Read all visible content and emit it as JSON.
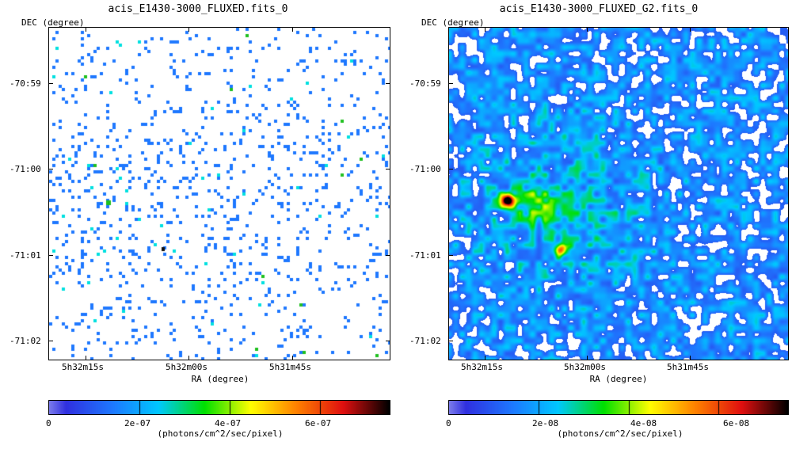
{
  "panels": [
    {
      "title": "acis_E1430-3000_FLUXED.fits_0",
      "y_axis_label": "DEC (degree)",
      "x_axis_label": "RA (degree)",
      "y_ticks": [
        "-70:59",
        "-71:00",
        "-71:01",
        "-71:02"
      ],
      "x_ticks": [
        "5h32m15s",
        "5h32m00s",
        "5h31m45s"
      ],
      "colorbar_ticks": [
        "0",
        "2e-07",
        "4e-07",
        "6e-07"
      ],
      "colorbar_unit": "(photons/cm^2/sec/pixel)",
      "image_style": "sparse-pixels"
    },
    {
      "title": "acis_E1430-3000_FLUXED_G2.fits_0",
      "y_axis_label": "DEC (degree)",
      "x_axis_label": "RA (degree)",
      "y_ticks": [
        "-70:59",
        "-71:00",
        "-71:01",
        "-71:02"
      ],
      "x_ticks": [
        "5h32m15s",
        "5h32m00s",
        "5h31m45s"
      ],
      "colorbar_ticks": [
        "0",
        "2e-08",
        "4e-08",
        "6e-08"
      ],
      "colorbar_unit": "(photons/cm^2/sec/pixel)",
      "image_style": "smoothed"
    }
  ],
  "colormap": [
    "#ffffff",
    "#3030e0",
    "#1e78ff",
    "#00c8ff",
    "#00e000",
    "#ffff00",
    "#ff8000",
    "#e01010",
    "#000000"
  ]
}
